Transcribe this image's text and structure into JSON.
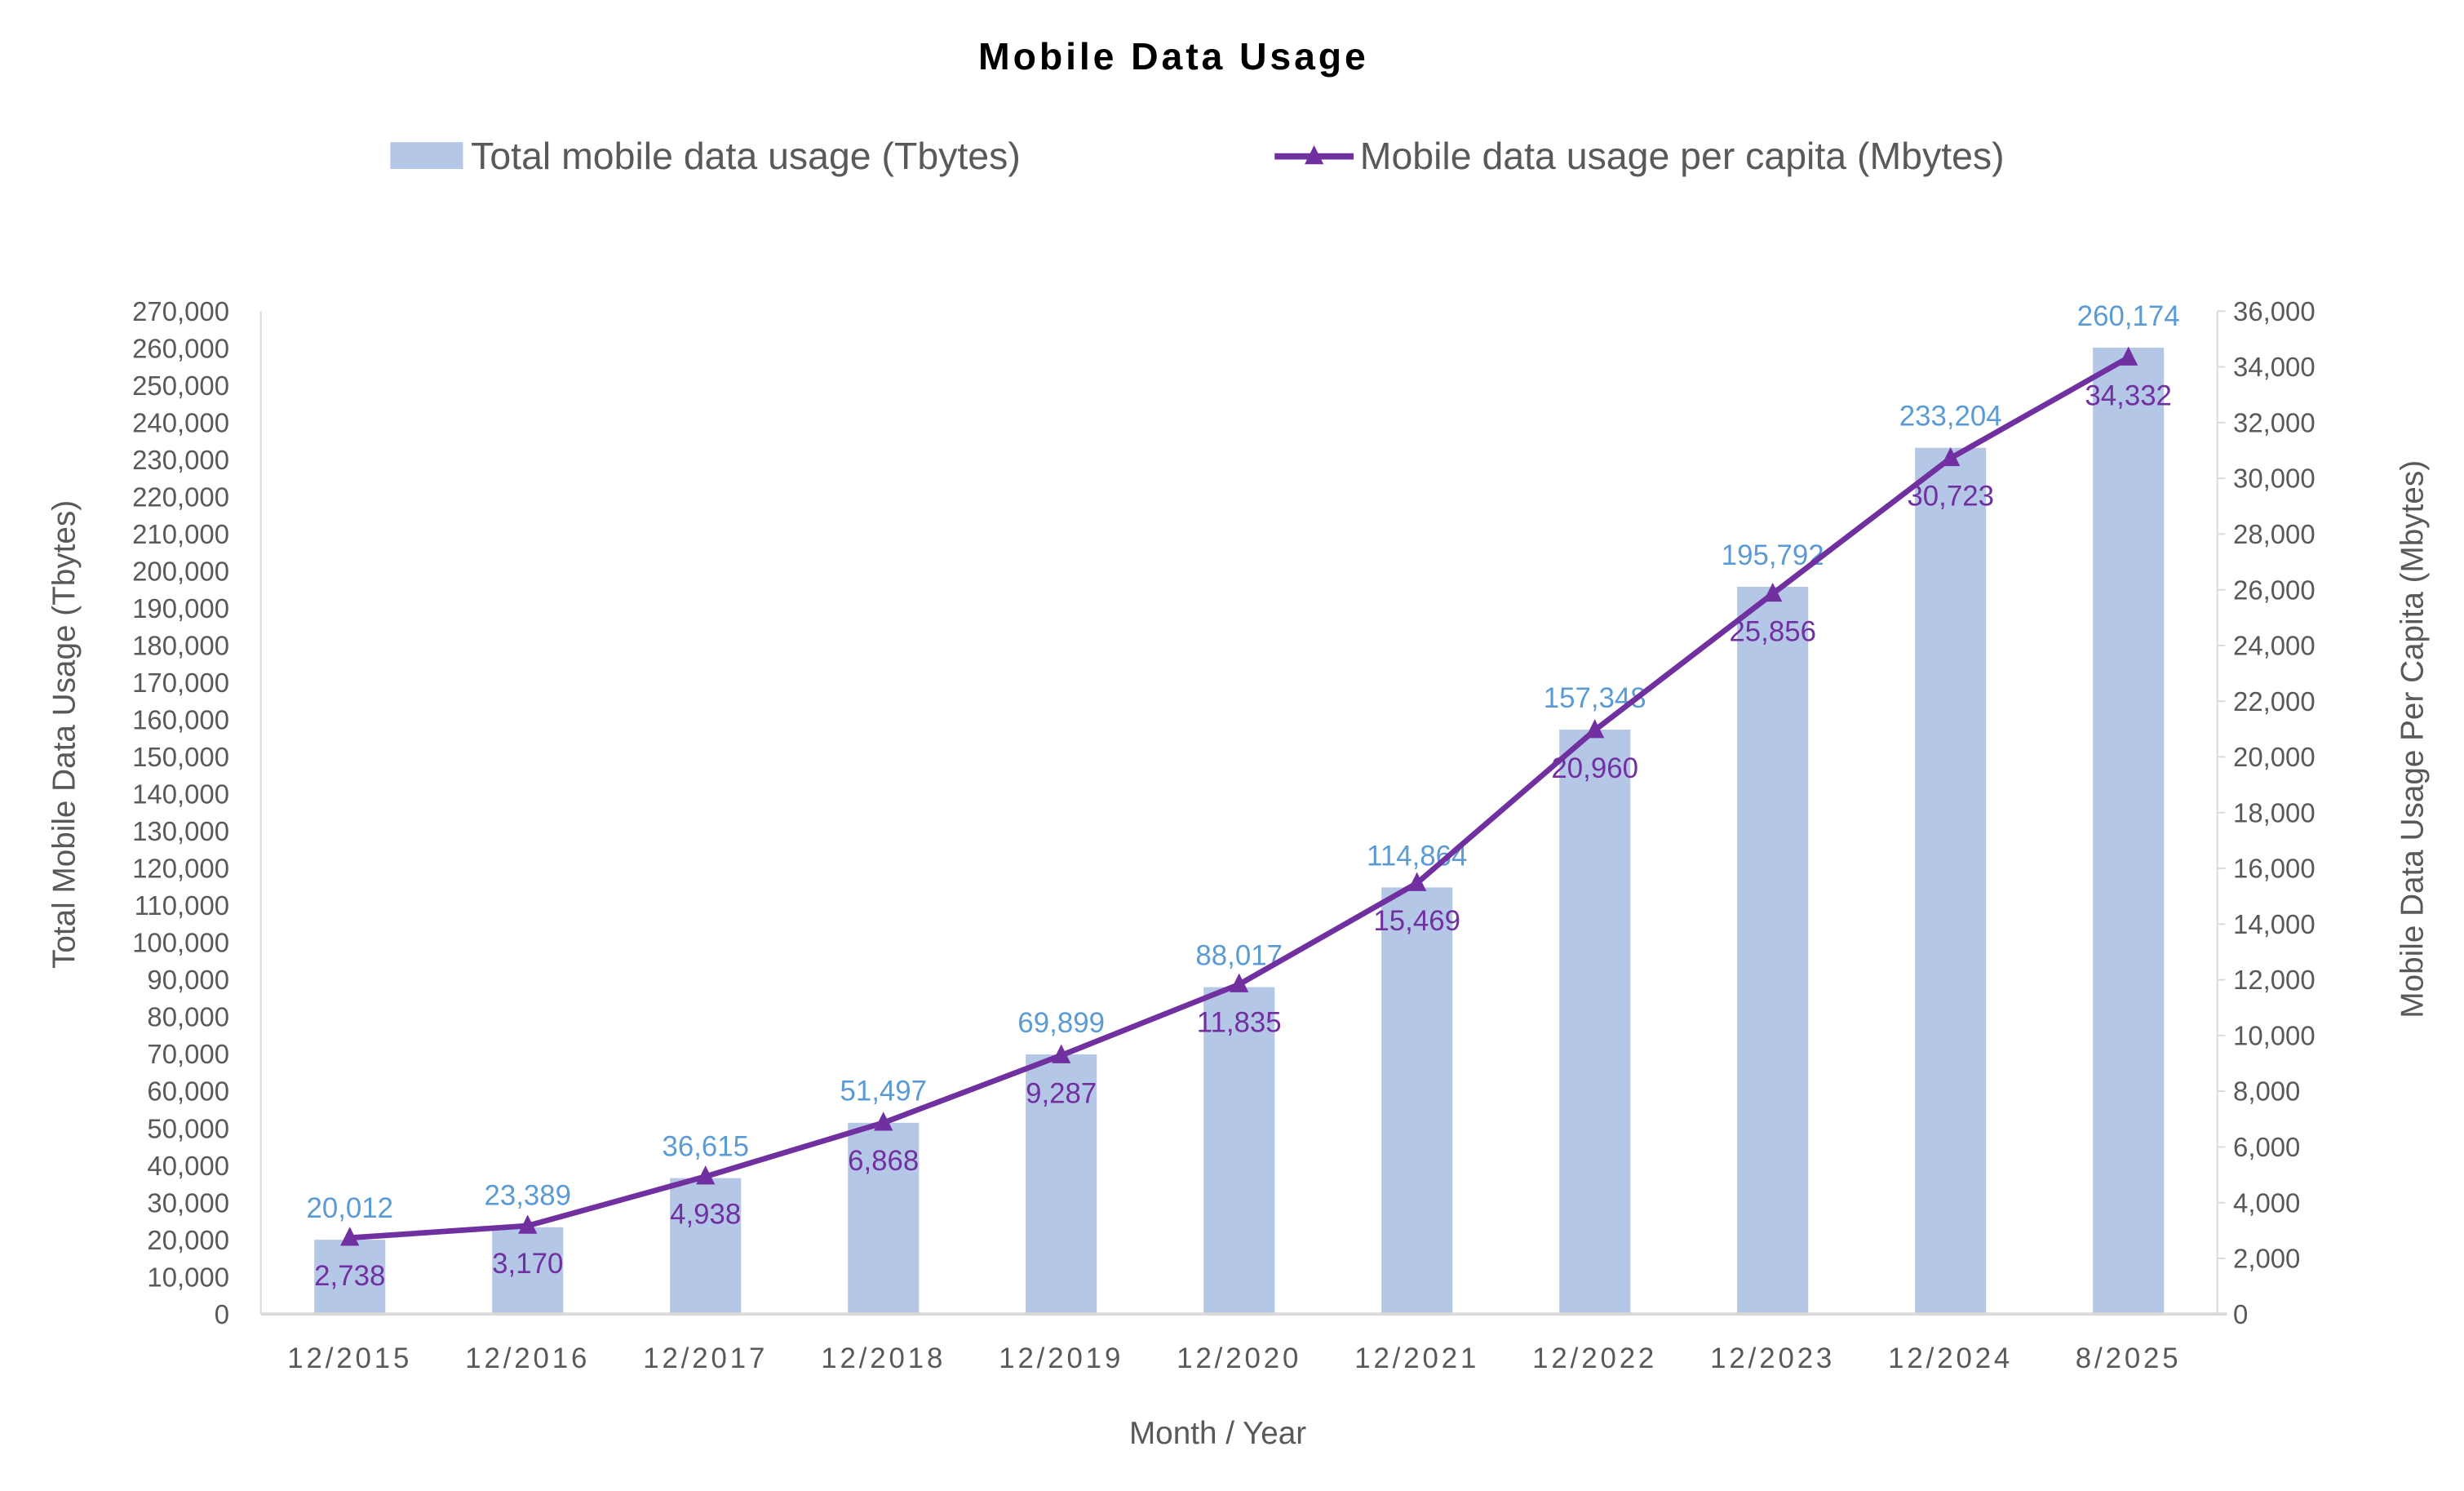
{
  "chart_data": {
    "type": "bar+line",
    "title": "Mobile Data Usage",
    "xlabel": "Month / Year",
    "ylabel_left": "Total Mobile Data Usage (Tbytes)",
    "ylabel_right": "Mobile Data Usage Per Capita (Mbytes)",
    "categories": [
      "12/2015",
      "12/2016",
      "12/2017",
      "12/2018",
      "12/2019",
      "12/2020",
      "12/2021",
      "12/2022",
      "12/2023",
      "12/2024",
      "8/2025"
    ],
    "ylim_left": [
      0,
      270000
    ],
    "ytick_step_left": 10000,
    "ylim_right": [
      0,
      36000
    ],
    "ytick_step_right": 2000,
    "legend_position": "top",
    "grid": false,
    "series": [
      {
        "name": "Total mobile data usage (Tbytes)",
        "type": "bar",
        "axis": "left",
        "color": "#b4c7e7",
        "label_color": "#5b9bd5",
        "values": [
          20012,
          23389,
          36615,
          51497,
          69899,
          88017,
          114864,
          157348,
          195792,
          233204,
          260174
        ]
      },
      {
        "name": "Mobile data usage per capita (Mbytes)",
        "type": "line",
        "axis": "right",
        "marker": "triangle",
        "color": "#7030a0",
        "label_color": "#7030a0",
        "values": [
          2738,
          3170,
          4938,
          6868,
          9287,
          11835,
          15469,
          20960,
          25856,
          30723,
          34332
        ]
      }
    ]
  }
}
